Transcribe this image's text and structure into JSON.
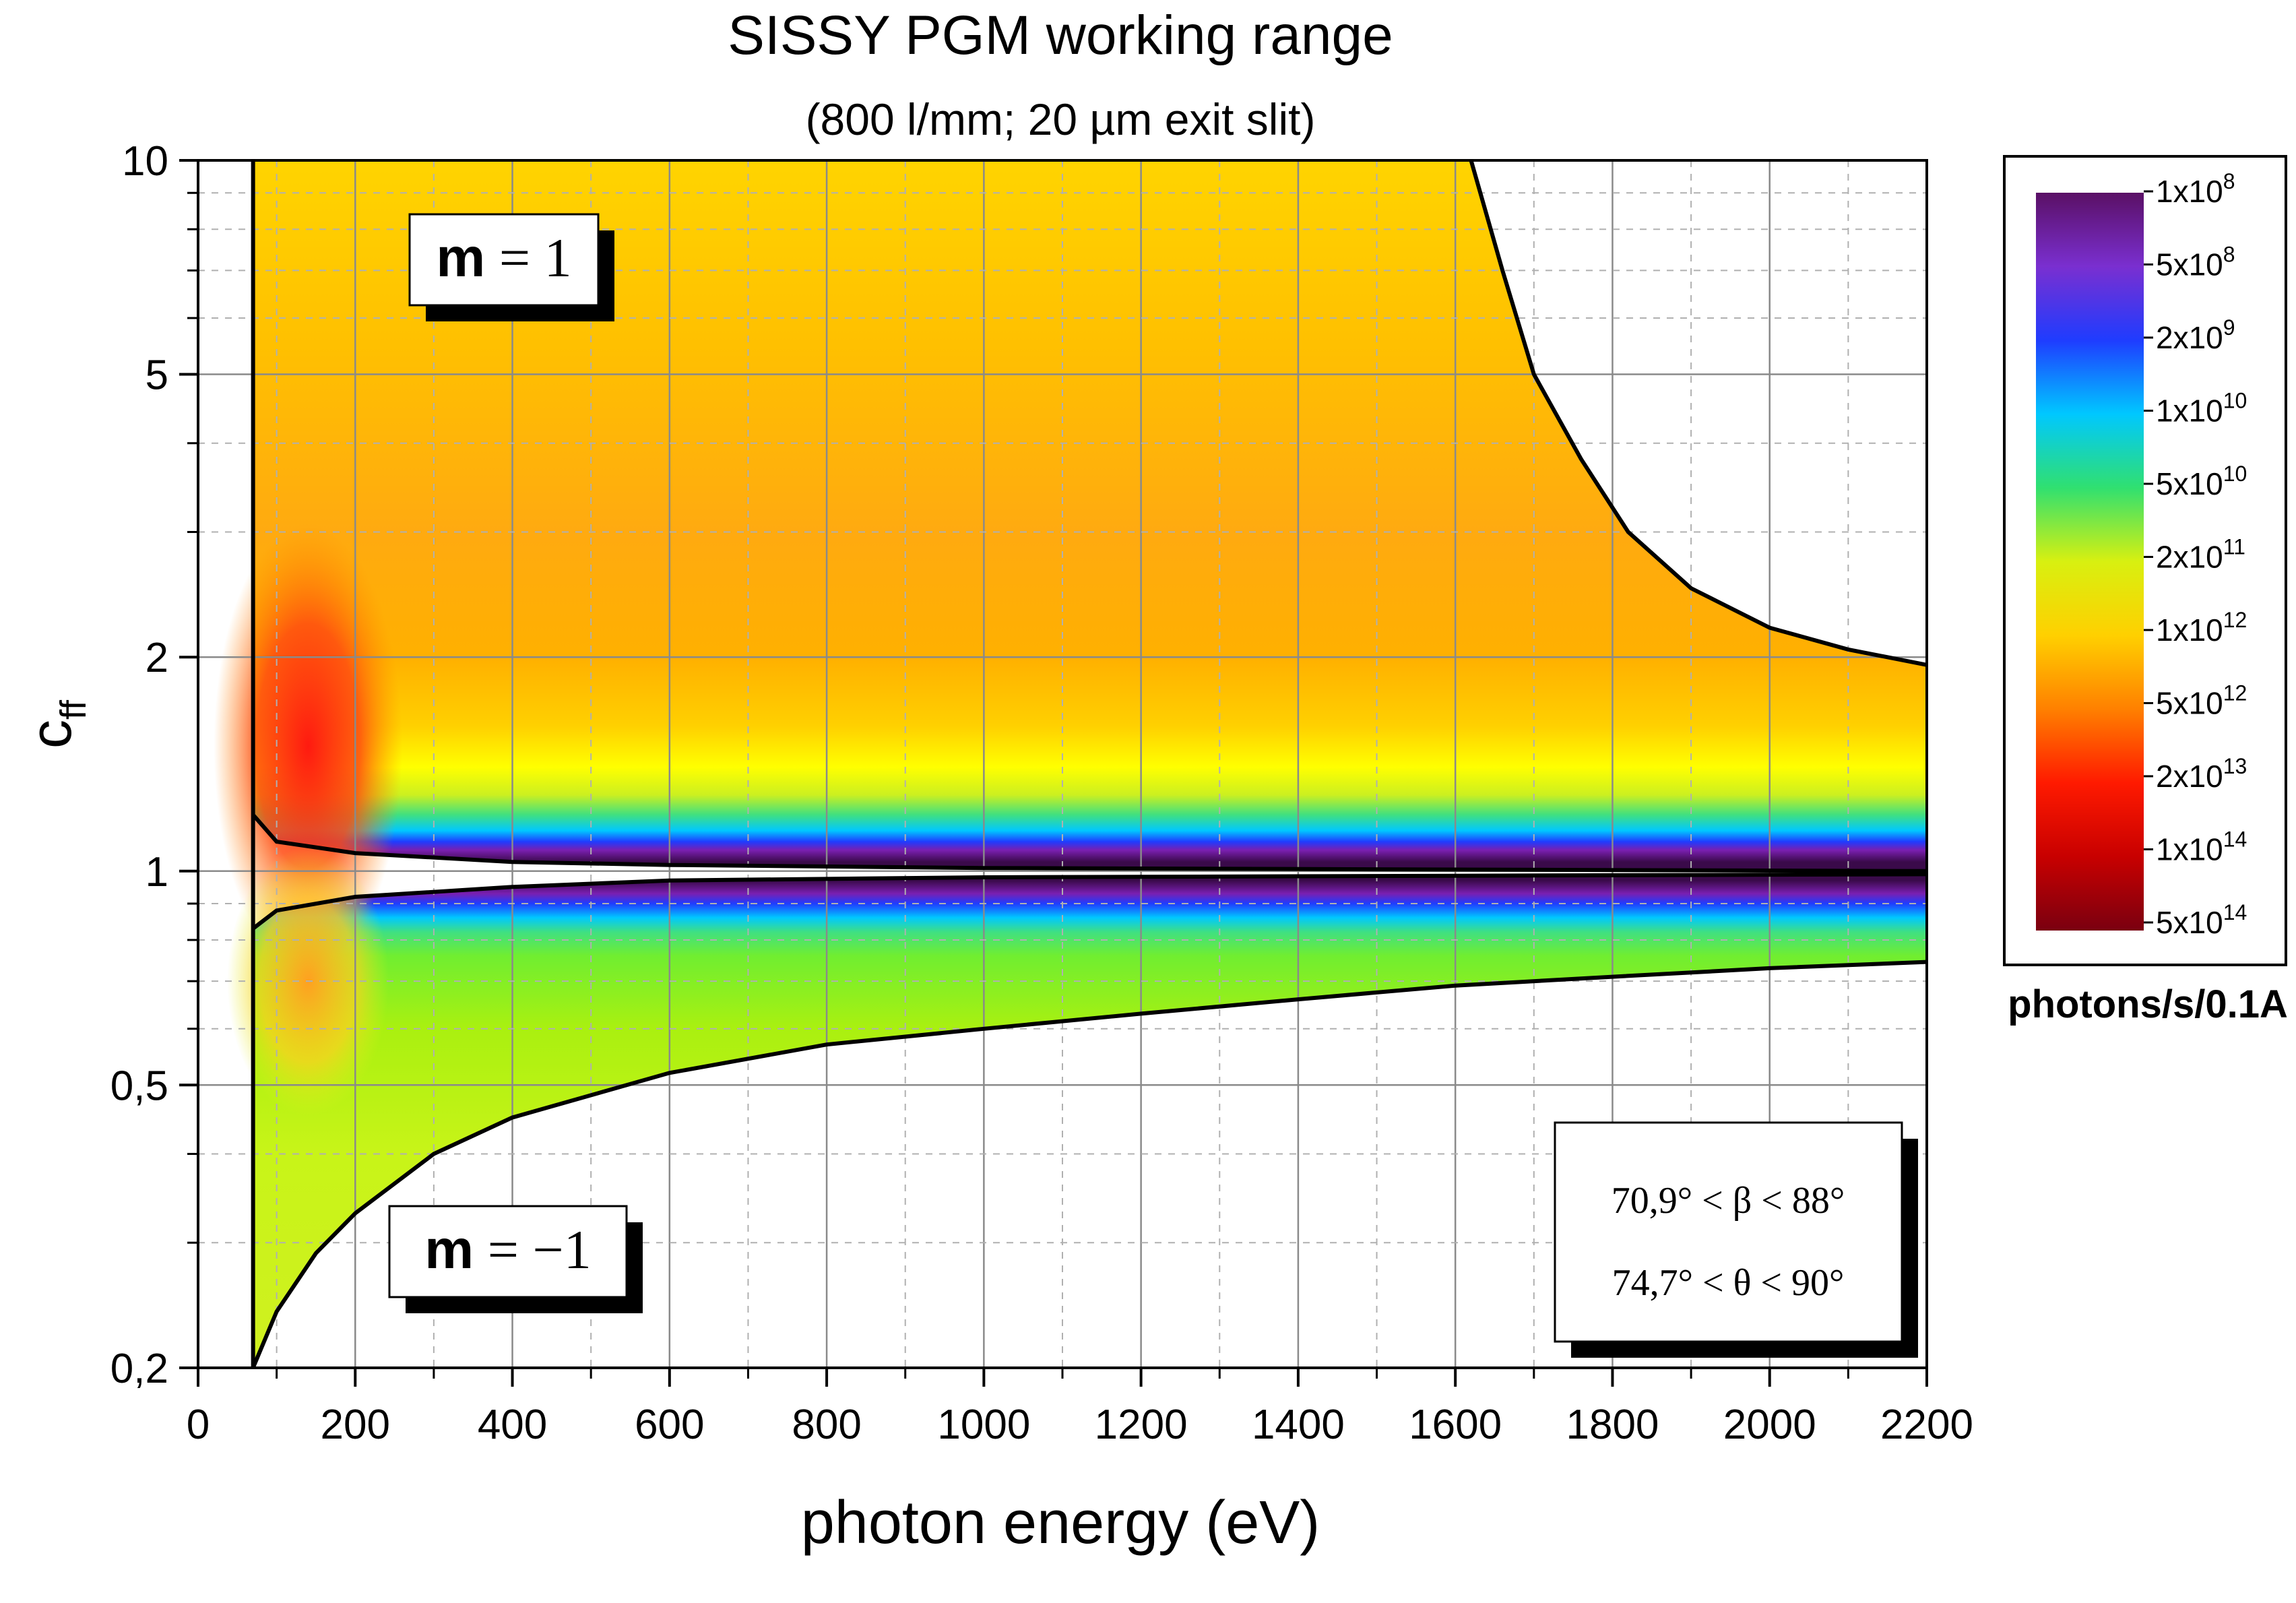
{
  "chart_data": {
    "type": "heatmap",
    "title": "SISSY PGM working range",
    "subtitle": "(800 l/mm; 20 µm exit slit)",
    "xlabel": "photon energy (eV)",
    "ylabel": {
      "base": "c",
      "subscript": "ff"
    },
    "x_range": [
      0,
      2200
    ],
    "y_range": [
      0.2,
      10
    ],
    "y_scale": "log",
    "x_ticks": [
      0,
      200,
      400,
      600,
      800,
      1000,
      1200,
      1400,
      1600,
      1800,
      2000,
      2200
    ],
    "x_tick_labels": [
      "0",
      "200",
      "400",
      "600",
      "800",
      "1000",
      "1200",
      "1400",
      "1600",
      "1800",
      "2000",
      "2200"
    ],
    "y_ticks": [
      0.2,
      0.5,
      1,
      2,
      5,
      10
    ],
    "y_tick_labels": [
      "0,2",
      "0,5",
      "1",
      "2",
      "5",
      "10"
    ],
    "grid": true,
    "regions": [
      {
        "label": "m = 1",
        "label_m": "m",
        "label_rest": " = 1",
        "color_profile": [
          [
            1.03,
            "#3a0a4a"
          ],
          [
            1.07,
            "#7a1fb0"
          ],
          [
            1.1,
            "#1f3cff"
          ],
          [
            1.14,
            "#00c8ff"
          ],
          [
            1.2,
            "#40e080"
          ],
          [
            1.28,
            "#ccf020"
          ],
          [
            1.4,
            "#ffff00"
          ],
          [
            1.6,
            "#ffd000"
          ],
          [
            2.0,
            "#ffb000"
          ],
          [
            3.0,
            "#ffaa10"
          ],
          [
            5.5,
            "#ffc000"
          ],
          [
            10,
            "#ffd400"
          ]
        ],
        "boundary": {
          "lower": [
            [
              70,
              1.2
            ],
            [
              100,
              1.1
            ],
            [
              200,
              1.06
            ],
            [
              400,
              1.03
            ],
            [
              600,
              1.02
            ],
            [
              1000,
              1.01
            ],
            [
              2200,
              1.0
            ]
          ],
          "upper_left_edge_eV": 70,
          "upper_right": [
            [
              1620,
              10
            ],
            [
              1660,
              7
            ],
            [
              1700,
              5
            ],
            [
              1760,
              3.8
            ],
            [
              1820,
              3.0
            ],
            [
              1900,
              2.5
            ],
            [
              2000,
              2.2
            ],
            [
              2100,
              2.05
            ],
            [
              2200,
              1.95
            ]
          ]
        }
      },
      {
        "label": "m = −1",
        "label_m": "m",
        "label_rest": " = −1",
        "color_profile": [
          [
            0.97,
            "#3a0a4a"
          ],
          [
            0.93,
            "#7a1fb0"
          ],
          [
            0.9,
            "#1f3cff"
          ],
          [
            0.86,
            "#00c8ff"
          ],
          [
            0.82,
            "#40e080"
          ],
          [
            0.76,
            "#70ee30"
          ],
          [
            0.6,
            "#aaf010"
          ],
          [
            0.4,
            "#c8f418"
          ],
          [
            0.2,
            "#d0f020"
          ]
        ],
        "boundary": {
          "upper": [
            [
              70,
              0.83
            ],
            [
              100,
              0.88
            ],
            [
              200,
              0.92
            ],
            [
              400,
              0.95
            ],
            [
              600,
              0.97
            ],
            [
              1000,
              0.98
            ],
            [
              2200,
              0.99
            ]
          ],
          "lower": [
            [
              70,
              0.2
            ],
            [
              100,
              0.24
            ],
            [
              150,
              0.29
            ],
            [
              200,
              0.33
            ],
            [
              300,
              0.4
            ],
            [
              400,
              0.45
            ],
            [
              600,
              0.52
            ],
            [
              800,
              0.57
            ],
            [
              1000,
              0.6
            ],
            [
              1200,
              0.63
            ],
            [
              1400,
              0.66
            ],
            [
              1600,
              0.69
            ],
            [
              1800,
              0.71
            ],
            [
              2000,
              0.73
            ],
            [
              2200,
              0.745
            ]
          ]
        }
      }
    ],
    "hotspots": [
      {
        "x": 140,
        "y": 1.5,
        "color": "#ff1a10",
        "note": "red band near 100–200 eV, m=1"
      },
      {
        "x": 140,
        "y": 0.7,
        "color": "#ffa020",
        "note": "orange band near 100–200 eV, m=-1"
      }
    ],
    "colorbar": {
      "title": "photons/s/0.1A",
      "ticks": [
        {
          "mantissa": "1x10",
          "exp": "8"
        },
        {
          "mantissa": "5x10",
          "exp": "8"
        },
        {
          "mantissa": "2x10",
          "exp": "9"
        },
        {
          "mantissa": "1x10",
          "exp": "10"
        },
        {
          "mantissa": "5x10",
          "exp": "10"
        },
        {
          "mantissa": "2x10",
          "exp": "11"
        },
        {
          "mantissa": "1x10",
          "exp": "12"
        },
        {
          "mantissa": "5x10",
          "exp": "12"
        },
        {
          "mantissa": "2x10",
          "exp": "13"
        },
        {
          "mantissa": "1x10",
          "exp": "14"
        },
        {
          "mantissa": "5x10",
          "exp": "14"
        }
      ],
      "colors": [
        "#5a1065",
        "#7a2fd0",
        "#1f3cff",
        "#00c8ff",
        "#30e070",
        "#d8f010",
        "#ffd000",
        "#ff8000",
        "#ff1a00",
        "#c80000",
        "#7a0010"
      ]
    },
    "annotations": [
      {
        "name": "beta-range",
        "text": "70,9° < β < 88°"
      },
      {
        "name": "theta-range",
        "text": "74,7° < θ < 90°"
      }
    ]
  }
}
